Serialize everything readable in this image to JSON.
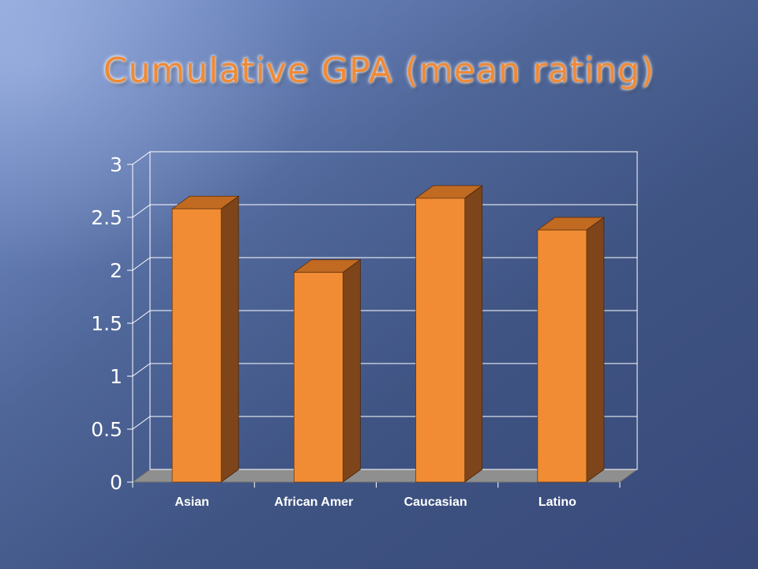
{
  "slide": {
    "title": "Cumulative GPA (mean rating)"
  },
  "colors": {
    "bar_front": "#f28c34",
    "bar_top": "#c06a22",
    "bar_side": "#7d4519",
    "grid": "#ffffff",
    "floor": "#8f8f8f"
  },
  "chart_data": {
    "type": "bar",
    "title": "",
    "xlabel": "",
    "ylabel": "",
    "categories": [
      "Asian",
      "African Amer",
      "Caucasian",
      "Latino"
    ],
    "values": [
      2.58,
      1.98,
      2.68,
      2.38
    ],
    "ylim": [
      0,
      3
    ],
    "yticks": [
      "0",
      "0.5",
      "1",
      "1.5",
      "2",
      "2.5",
      "3"
    ],
    "yticks_values": [
      0,
      0.5,
      1,
      1.5,
      2,
      2.5,
      3
    ],
    "grid": true,
    "legend": "none",
    "style": "3d-bars"
  }
}
